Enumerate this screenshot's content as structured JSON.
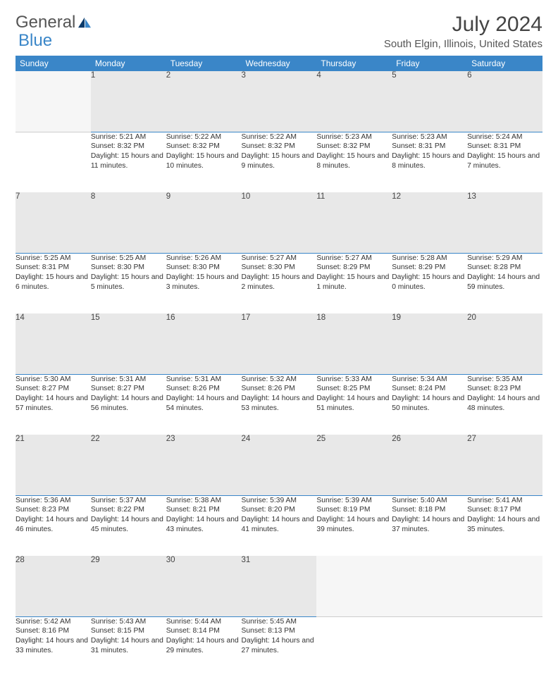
{
  "logo": {
    "text1": "General",
    "text2": "Blue"
  },
  "title": "July 2024",
  "location": "South Elgin, Illinois, United States",
  "colors": {
    "header_bg": "#3a86c8",
    "header_fg": "#ffffff",
    "daynum_bg": "#e8e8e8",
    "divider": "#3a86c8",
    "text": "#333333",
    "logo_gray": "#555555",
    "logo_blue": "#3a86c8"
  },
  "weekdays": [
    "Sunday",
    "Monday",
    "Tuesday",
    "Wednesday",
    "Thursday",
    "Friday",
    "Saturday"
  ],
  "weeks": [
    {
      "nums": [
        "",
        "1",
        "2",
        "3",
        "4",
        "5",
        "6"
      ],
      "cells": [
        null,
        {
          "sr": "Sunrise: 5:21 AM",
          "ss": "Sunset: 8:32 PM",
          "dl": "Daylight: 15 hours and 11 minutes."
        },
        {
          "sr": "Sunrise: 5:22 AM",
          "ss": "Sunset: 8:32 PM",
          "dl": "Daylight: 15 hours and 10 minutes."
        },
        {
          "sr": "Sunrise: 5:22 AM",
          "ss": "Sunset: 8:32 PM",
          "dl": "Daylight: 15 hours and 9 minutes."
        },
        {
          "sr": "Sunrise: 5:23 AM",
          "ss": "Sunset: 8:32 PM",
          "dl": "Daylight: 15 hours and 8 minutes."
        },
        {
          "sr": "Sunrise: 5:23 AM",
          "ss": "Sunset: 8:31 PM",
          "dl": "Daylight: 15 hours and 8 minutes."
        },
        {
          "sr": "Sunrise: 5:24 AM",
          "ss": "Sunset: 8:31 PM",
          "dl": "Daylight: 15 hours and 7 minutes."
        }
      ]
    },
    {
      "nums": [
        "7",
        "8",
        "9",
        "10",
        "11",
        "12",
        "13"
      ],
      "cells": [
        {
          "sr": "Sunrise: 5:25 AM",
          "ss": "Sunset: 8:31 PM",
          "dl": "Daylight: 15 hours and 6 minutes."
        },
        {
          "sr": "Sunrise: 5:25 AM",
          "ss": "Sunset: 8:30 PM",
          "dl": "Daylight: 15 hours and 5 minutes."
        },
        {
          "sr": "Sunrise: 5:26 AM",
          "ss": "Sunset: 8:30 PM",
          "dl": "Daylight: 15 hours and 3 minutes."
        },
        {
          "sr": "Sunrise: 5:27 AM",
          "ss": "Sunset: 8:30 PM",
          "dl": "Daylight: 15 hours and 2 minutes."
        },
        {
          "sr": "Sunrise: 5:27 AM",
          "ss": "Sunset: 8:29 PM",
          "dl": "Daylight: 15 hours and 1 minute."
        },
        {
          "sr": "Sunrise: 5:28 AM",
          "ss": "Sunset: 8:29 PM",
          "dl": "Daylight: 15 hours and 0 minutes."
        },
        {
          "sr": "Sunrise: 5:29 AM",
          "ss": "Sunset: 8:28 PM",
          "dl": "Daylight: 14 hours and 59 minutes."
        }
      ]
    },
    {
      "nums": [
        "14",
        "15",
        "16",
        "17",
        "18",
        "19",
        "20"
      ],
      "cells": [
        {
          "sr": "Sunrise: 5:30 AM",
          "ss": "Sunset: 8:27 PM",
          "dl": "Daylight: 14 hours and 57 minutes."
        },
        {
          "sr": "Sunrise: 5:31 AM",
          "ss": "Sunset: 8:27 PM",
          "dl": "Daylight: 14 hours and 56 minutes."
        },
        {
          "sr": "Sunrise: 5:31 AM",
          "ss": "Sunset: 8:26 PM",
          "dl": "Daylight: 14 hours and 54 minutes."
        },
        {
          "sr": "Sunrise: 5:32 AM",
          "ss": "Sunset: 8:26 PM",
          "dl": "Daylight: 14 hours and 53 minutes."
        },
        {
          "sr": "Sunrise: 5:33 AM",
          "ss": "Sunset: 8:25 PM",
          "dl": "Daylight: 14 hours and 51 minutes."
        },
        {
          "sr": "Sunrise: 5:34 AM",
          "ss": "Sunset: 8:24 PM",
          "dl": "Daylight: 14 hours and 50 minutes."
        },
        {
          "sr": "Sunrise: 5:35 AM",
          "ss": "Sunset: 8:23 PM",
          "dl": "Daylight: 14 hours and 48 minutes."
        }
      ]
    },
    {
      "nums": [
        "21",
        "22",
        "23",
        "24",
        "25",
        "26",
        "27"
      ],
      "cells": [
        {
          "sr": "Sunrise: 5:36 AM",
          "ss": "Sunset: 8:23 PM",
          "dl": "Daylight: 14 hours and 46 minutes."
        },
        {
          "sr": "Sunrise: 5:37 AM",
          "ss": "Sunset: 8:22 PM",
          "dl": "Daylight: 14 hours and 45 minutes."
        },
        {
          "sr": "Sunrise: 5:38 AM",
          "ss": "Sunset: 8:21 PM",
          "dl": "Daylight: 14 hours and 43 minutes."
        },
        {
          "sr": "Sunrise: 5:39 AM",
          "ss": "Sunset: 8:20 PM",
          "dl": "Daylight: 14 hours and 41 minutes."
        },
        {
          "sr": "Sunrise: 5:39 AM",
          "ss": "Sunset: 8:19 PM",
          "dl": "Daylight: 14 hours and 39 minutes."
        },
        {
          "sr": "Sunrise: 5:40 AM",
          "ss": "Sunset: 8:18 PM",
          "dl": "Daylight: 14 hours and 37 minutes."
        },
        {
          "sr": "Sunrise: 5:41 AM",
          "ss": "Sunset: 8:17 PM",
          "dl": "Daylight: 14 hours and 35 minutes."
        }
      ]
    },
    {
      "nums": [
        "28",
        "29",
        "30",
        "31",
        "",
        "",
        ""
      ],
      "cells": [
        {
          "sr": "Sunrise: 5:42 AM",
          "ss": "Sunset: 8:16 PM",
          "dl": "Daylight: 14 hours and 33 minutes."
        },
        {
          "sr": "Sunrise: 5:43 AM",
          "ss": "Sunset: 8:15 PM",
          "dl": "Daylight: 14 hours and 31 minutes."
        },
        {
          "sr": "Sunrise: 5:44 AM",
          "ss": "Sunset: 8:14 PM",
          "dl": "Daylight: 14 hours and 29 minutes."
        },
        {
          "sr": "Sunrise: 5:45 AM",
          "ss": "Sunset: 8:13 PM",
          "dl": "Daylight: 14 hours and 27 minutes."
        },
        null,
        null,
        null
      ]
    }
  ]
}
